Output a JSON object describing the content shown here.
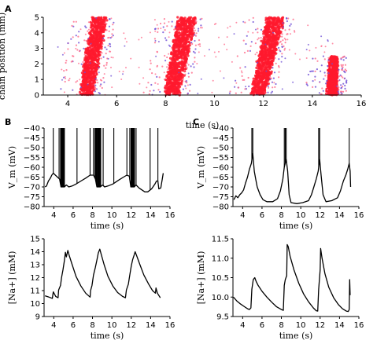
{
  "panels": {
    "a": {
      "letter": "A"
    },
    "b": {
      "letter": "B"
    },
    "c": {
      "letter": "C"
    }
  },
  "chart_data": [
    {
      "id": "A",
      "type": "scatter",
      "title": "",
      "xlabel": "time (s)",
      "ylabel": "chain position (mm)",
      "xlim": [
        3,
        16
      ],
      "ylim": [
        0,
        5
      ],
      "xticks": [
        4,
        6,
        8,
        10,
        12,
        14,
        16
      ],
      "yticks": [
        0,
        1,
        2,
        3,
        4,
        5
      ],
      "grid": false,
      "colors": {
        "main": "#ff1a2e",
        "secondary": "#ff6a8a",
        "accent": "#6f4fd6"
      },
      "bands": [
        {
          "x_start_bottom": 4.5,
          "x_end_bottom": 5.0,
          "x_start_top": 5.0,
          "x_end_top": 5.6
        },
        {
          "x_start_bottom": 7.95,
          "x_end_bottom": 8.55,
          "x_start_top": 8.5,
          "x_end_top": 9.25
        },
        {
          "x_start_bottom": 11.5,
          "x_end_bottom": 12.05,
          "x_start_top": 12.15,
          "x_end_top": 12.85
        },
        {
          "x_start_bottom": 14.6,
          "x_end_bottom": 15.0,
          "x_start_top": 14.9,
          "x_end_top": 15.0,
          "y_max": 2.5
        }
      ],
      "scatter_extent": [
        3.3,
        15.1
      ]
    },
    {
      "id": "B-top",
      "type": "line",
      "xlabel": "time (s)",
      "ylabel": "V_m (mV)",
      "xlim": [
        3,
        16
      ],
      "ylim": [
        -80,
        -40
      ],
      "xticks": [
        4,
        6,
        8,
        10,
        12,
        14,
        16
      ],
      "yticks": [
        -40,
        -45,
        -50,
        -55,
        -60,
        -65,
        -70,
        -75,
        -80
      ],
      "baseline": [
        [
          3.1,
          -70
        ],
        [
          3.25,
          -69.5
        ],
        [
          3.45,
          -67
        ],
        [
          3.65,
          -65.5
        ],
        [
          3.8,
          -64
        ],
        [
          3.95,
          -63
        ],
        [
          4.6,
          -66
        ],
        [
          4.75,
          -70
        ],
        [
          5.1,
          -70
        ],
        [
          5.3,
          -69
        ],
        [
          5.55,
          -70
        ],
        [
          5.9,
          -69.5
        ],
        [
          6.3,
          -68.5
        ],
        [
          6.8,
          -67
        ],
        [
          7.3,
          -65.5
        ],
        [
          7.75,
          -64
        ],
        [
          8.1,
          -64
        ],
        [
          8.3,
          -66
        ],
        [
          8.45,
          -70
        ],
        [
          8.8,
          -70
        ],
        [
          9.05,
          -69
        ],
        [
          9.25,
          -70
        ],
        [
          9.6,
          -69.5
        ],
        [
          10.1,
          -68.5
        ],
        [
          10.7,
          -66.5
        ],
        [
          11.2,
          -65
        ],
        [
          11.55,
          -64
        ],
        [
          11.8,
          -64.5
        ],
        [
          11.95,
          -70
        ],
        [
          12.3,
          -70
        ],
        [
          12.5,
          -69
        ],
        [
          12.8,
          -70.5
        ],
        [
          13.1,
          -71.5
        ],
        [
          13.4,
          -72.5
        ],
        [
          13.7,
          -72.5
        ],
        [
          14.1,
          -71
        ],
        [
          14.45,
          -68.5
        ],
        [
          14.6,
          -67
        ],
        [
          14.75,
          -67
        ],
        [
          14.85,
          -71
        ],
        [
          15.05,
          -70.5
        ],
        [
          15.2,
          -66
        ],
        [
          15.3,
          -63
        ]
      ],
      "spikes": [
        3.95,
        4.55,
        4.7,
        4.76,
        4.82,
        4.88,
        4.94,
        5.0,
        5.05,
        5.1,
        6.4,
        7.75,
        8.1,
        8.25,
        8.33,
        8.4,
        8.47,
        8.54,
        8.6,
        8.66,
        8.72,
        8.78,
        8.85,
        9.1,
        10.2,
        11.55,
        11.85,
        11.98,
        12.04,
        12.1,
        12.16,
        12.22,
        12.28,
        12.34,
        12.5,
        13.95,
        14.75
      ]
    },
    {
      "id": "B-bottom",
      "type": "line",
      "xlabel": "time (s)",
      "ylabel": "[Na+] (mM)",
      "xlim": [
        3,
        16
      ],
      "ylim": [
        9,
        15
      ],
      "xticks": [
        4,
        6,
        8,
        10,
        12,
        14,
        16
      ],
      "yticks": [
        9,
        10,
        11,
        12,
        13,
        14,
        15
      ],
      "series": [
        [
          3.1,
          10.6
        ],
        [
          3.5,
          10.5
        ],
        [
          3.85,
          10.4
        ],
        [
          3.95,
          10.9
        ],
        [
          4.2,
          10.55
        ],
        [
          4.45,
          10.45
        ],
        [
          4.5,
          11.05
        ],
        [
          4.7,
          11.4
        ],
        [
          4.8,
          12.0
        ],
        [
          4.95,
          12.6
        ],
        [
          5.1,
          13.3
        ],
        [
          5.2,
          13.95
        ],
        [
          5.3,
          13.6
        ],
        [
          5.45,
          14.1
        ],
        [
          5.6,
          13.7
        ],
        [
          5.9,
          13.0
        ],
        [
          6.3,
          12.1
        ],
        [
          6.8,
          11.35
        ],
        [
          7.3,
          10.8
        ],
        [
          7.75,
          10.5
        ],
        [
          7.8,
          11.0
        ],
        [
          7.95,
          11.4
        ],
        [
          8.1,
          12.2
        ],
        [
          8.3,
          12.8
        ],
        [
          8.45,
          13.35
        ],
        [
          8.6,
          13.9
        ],
        [
          8.75,
          14.2
        ],
        [
          8.9,
          13.8
        ],
        [
          9.2,
          13.0
        ],
        [
          9.6,
          12.1
        ],
        [
          10.1,
          11.35
        ],
        [
          10.6,
          10.85
        ],
        [
          11.1,
          10.55
        ],
        [
          11.4,
          10.45
        ],
        [
          11.5,
          11.05
        ],
        [
          11.7,
          11.5
        ],
        [
          11.85,
          12.2
        ],
        [
          12.0,
          12.9
        ],
        [
          12.15,
          13.4
        ],
        [
          12.3,
          13.75
        ],
        [
          12.4,
          14.0
        ],
        [
          12.6,
          13.6
        ],
        [
          12.9,
          13.0
        ],
        [
          13.3,
          12.2
        ],
        [
          13.8,
          11.5
        ],
        [
          14.2,
          11.0
        ],
        [
          14.5,
          10.8
        ],
        [
          14.55,
          11.2
        ],
        [
          14.7,
          10.8
        ],
        [
          15.0,
          10.45
        ]
      ]
    },
    {
      "id": "C-top",
      "type": "line",
      "xlabel": "time (s)",
      "ylabel": "V_m (mV)",
      "xlim": [
        3,
        16
      ],
      "ylim": [
        -80,
        -40
      ],
      "xticks": [
        4,
        6,
        8,
        10,
        12,
        14,
        16
      ],
      "yticks": [
        -40,
        -45,
        -50,
        -55,
        -60,
        -65,
        -70,
        -75,
        -80
      ],
      "baseline": [
        [
          3.1,
          -76.5
        ],
        [
          3.3,
          -74.5
        ],
        [
          3.5,
          -75.5
        ],
        [
          3.7,
          -74
        ],
        [
          3.9,
          -73
        ],
        [
          4.1,
          -71.5
        ],
        [
          4.3,
          -68
        ],
        [
          4.5,
          -65
        ],
        [
          4.7,
          -61
        ],
        [
          4.9,
          -58
        ],
        [
          5.05,
          -53
        ],
        [
          5.2,
          -62
        ],
        [
          5.35,
          -66
        ],
        [
          5.5,
          -70
        ],
        [
          5.8,
          -74
        ],
        [
          6.1,
          -76.5
        ],
        [
          6.5,
          -77.5
        ],
        [
          7.1,
          -77.5
        ],
        [
          7.6,
          -76
        ],
        [
          7.9,
          -72
        ],
        [
          8.15,
          -66
        ],
        [
          8.3,
          -60
        ],
        [
          8.5,
          -56
        ],
        [
          8.65,
          -62
        ],
        [
          8.8,
          -74
        ],
        [
          9.0,
          -78
        ],
        [
          9.6,
          -78.5
        ],
        [
          10.2,
          -78
        ],
        [
          10.8,
          -77
        ],
        [
          11.1,
          -74
        ],
        [
          11.35,
          -70
        ],
        [
          11.6,
          -66
        ],
        [
          11.8,
          -62
        ],
        [
          11.95,
          -56
        ],
        [
          12.1,
          -64
        ],
        [
          12.3,
          -74
        ],
        [
          12.6,
          -77.5
        ],
        [
          13.2,
          -77
        ],
        [
          13.8,
          -75.5
        ],
        [
          14.1,
          -72
        ],
        [
          14.4,
          -67
        ],
        [
          14.65,
          -64
        ],
        [
          14.85,
          -61
        ],
        [
          15.0,
          -58
        ],
        [
          15.1,
          -62
        ],
        [
          15.15,
          -70
        ]
      ],
      "spikes": [
        4.95,
        5.05,
        8.3,
        8.4,
        8.5,
        11.85,
        11.95,
        15.0
      ]
    },
    {
      "id": "C-bottom",
      "type": "line",
      "xlabel": "time (s)",
      "ylabel": "[Na+] (mM)",
      "xlim": [
        3,
        16
      ],
      "ylim": [
        9.5,
        11.5
      ],
      "xticks": [
        4,
        6,
        8,
        10,
        12,
        14,
        16
      ],
      "yticks": [
        9.5,
        10.0,
        10.5,
        11.0,
        11.5
      ],
      "series": [
        [
          3.05,
          10.0
        ],
        [
          3.4,
          9.9
        ],
        [
          3.8,
          9.82
        ],
        [
          4.2,
          9.75
        ],
        [
          4.5,
          9.7
        ],
        [
          4.7,
          9.68
        ],
        [
          4.85,
          9.72
        ],
        [
          4.95,
          10.2
        ],
        [
          5.1,
          10.45
        ],
        [
          5.25,
          10.5
        ],
        [
          5.4,
          10.4
        ],
        [
          5.6,
          10.3
        ],
        [
          6.0,
          10.15
        ],
        [
          6.5,
          10.0
        ],
        [
          7.0,
          9.87
        ],
        [
          7.5,
          9.75
        ],
        [
          8.0,
          9.68
        ],
        [
          8.2,
          9.66
        ],
        [
          8.3,
          10.3
        ],
        [
          8.4,
          10.45
        ],
        [
          8.55,
          10.55
        ],
        [
          8.6,
          11.35
        ],
        [
          8.7,
          11.3
        ],
        [
          8.9,
          11.05
        ],
        [
          9.3,
          10.7
        ],
        [
          9.8,
          10.35
        ],
        [
          10.3,
          10.08
        ],
        [
          10.8,
          9.88
        ],
        [
          11.3,
          9.72
        ],
        [
          11.6,
          9.65
        ],
        [
          11.75,
          9.64
        ],
        [
          11.85,
          10.2
        ],
        [
          12.0,
          10.7
        ],
        [
          12.05,
          11.25
        ],
        [
          12.2,
          11.0
        ],
        [
          12.5,
          10.6
        ],
        [
          12.9,
          10.25
        ],
        [
          13.4,
          9.98
        ],
        [
          13.9,
          9.8
        ],
        [
          14.3,
          9.7
        ],
        [
          14.7,
          9.64
        ],
        [
          14.9,
          9.63
        ],
        [
          15.0,
          9.68
        ],
        [
          15.05,
          10.45
        ],
        [
          15.1,
          10.05
        ]
      ]
    }
  ]
}
